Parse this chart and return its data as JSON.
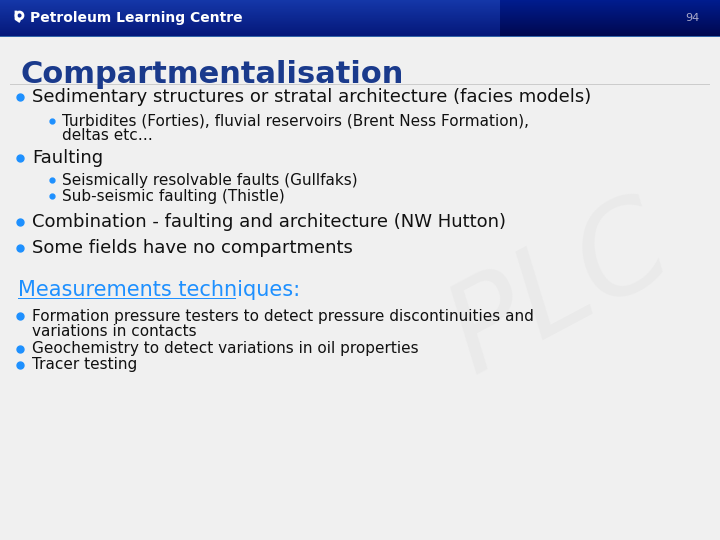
{
  "title": "Compartmentalisation",
  "title_color": "#1a3a8c",
  "header_text": "Petroleum Learning Centre",
  "header_num": "94",
  "bullet_color": "#1e90ff",
  "bullet1": "Sedimentary structures or stratal architecture (facies models)",
  "sub_bullet1a": "Turbidites (Forties), fluvial reservoirs (Brent Ness Formation),",
  "sub_bullet1b": "deltas etc…",
  "bullet2": "Faulting",
  "sub_bullet2a": "Seismically resolvable faults (Gullfaks)",
  "sub_bullet2b": "Sub-seismic faulting (Thistle)",
  "bullet3": "Combination - faulting and architecture (NW Hutton)",
  "bullet4": "Some fields have no compartments",
  "section_title": "Measurements techniques:",
  "section_title_color": "#1e90ff",
  "mbullet1a": "Formation pressure testers to detect pressure discontinuities and",
  "mbullet1b": "variations in contacts",
  "mbullet2": "Geochemistry to detect variations in oil properties",
  "mbullet3": "Tracer testing",
  "text_color": "#111111",
  "font_size_title": 22,
  "font_size_main": 13,
  "font_size_sub": 11,
  "font_size_section": 15,
  "font_size_header": 10,
  "slide_bg": "#f0f0f0"
}
